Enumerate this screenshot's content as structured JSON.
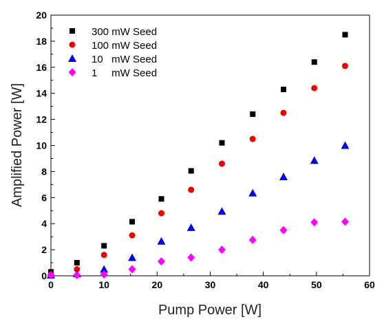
{
  "chart_data": {
    "type": "scatter",
    "xlabel": "Pump Power [W]",
    "ylabel": "Amplified Power [W]",
    "xlim": [
      0,
      60
    ],
    "ylim": [
      0,
      20
    ],
    "xticks": [
      "0",
      "10",
      "20",
      "30",
      "40",
      "50",
      "60"
    ],
    "yticks": [
      "0",
      "2",
      "4",
      "6",
      "8",
      "10",
      "12",
      "14",
      "16",
      "18",
      "20"
    ],
    "grid": false,
    "legend_position": "top-left",
    "series": [
      {
        "name": "300 mW Seed",
        "marker": "square",
        "color": "#000000",
        "x": [
          0,
          4.9,
          10.0,
          15.3,
          20.8,
          26.4,
          32.2,
          38.0,
          43.8,
          49.6,
          55.4
        ],
        "y": [
          0.3,
          1.0,
          2.3,
          4.15,
          5.9,
          8.05,
          10.2,
          12.4,
          14.3,
          16.4,
          18.5
        ]
      },
      {
        "name": "100 mW Seed",
        "marker": "circle",
        "color": "#ee0000",
        "x": [
          0,
          4.9,
          10.0,
          15.3,
          20.8,
          26.4,
          32.2,
          38.0,
          43.8,
          49.6,
          55.4
        ],
        "y": [
          0.1,
          0.5,
          1.6,
          3.1,
          4.8,
          6.6,
          8.6,
          10.5,
          12.5,
          14.4,
          16.1
        ]
      },
      {
        "name": "10   mW Seed",
        "marker": "triangle",
        "color": "#0000ee",
        "x": [
          0,
          4.9,
          10.0,
          15.3,
          20.8,
          26.4,
          32.2,
          38.0,
          43.8,
          49.6,
          55.4
        ],
        "y": [
          0.05,
          0.15,
          0.5,
          1.4,
          2.65,
          3.7,
          4.95,
          6.35,
          7.6,
          8.85,
          10.0
        ]
      },
      {
        "name": "1     mW Seed",
        "marker": "diamond",
        "color": "#ff00ff",
        "x": [
          0,
          4.9,
          10.0,
          15.3,
          20.8,
          26.4,
          32.2,
          38.0,
          43.8,
          49.6,
          55.4
        ],
        "y": [
          0.05,
          0.05,
          0.1,
          0.5,
          1.1,
          1.4,
          2.0,
          2.75,
          3.5,
          4.1,
          4.15
        ]
      }
    ]
  }
}
